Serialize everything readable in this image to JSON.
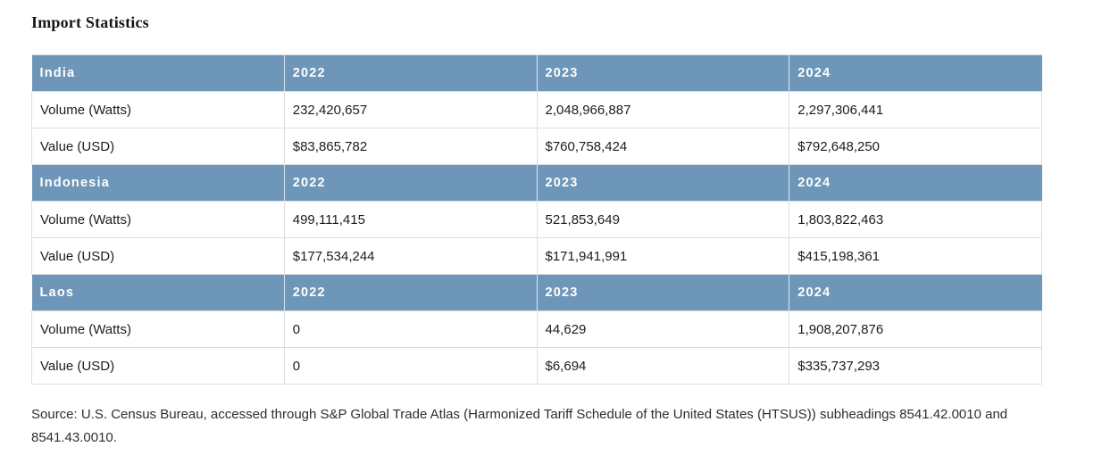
{
  "page": {
    "title": "Import Statistics"
  },
  "colors": {
    "header_bg": "#6e96b8",
    "header_text": "#ffffff",
    "row_border": "#d9dde2",
    "body_text": "#1c1c1c",
    "source_text": "#2e2e2e"
  },
  "table": {
    "row_labels": [
      "Volume (Watts)",
      "Value (USD)"
    ],
    "sections": [
      {
        "name": "India",
        "years": [
          "2022",
          "2023",
          "2024"
        ],
        "rows": [
          {
            "label": "Volume (Watts)",
            "values": [
              "232,420,657",
              "2,048,966,887",
              "2,297,306,441"
            ]
          },
          {
            "label": "Value (USD)",
            "values": [
              "$83,865,782",
              "$760,758,424",
              "$792,648,250"
            ]
          }
        ]
      },
      {
        "name": "Indonesia",
        "years": [
          "2022",
          "2023",
          "2024"
        ],
        "rows": [
          {
            "label": "Volume (Watts)",
            "values": [
              "499,111,415",
              "521,853,649",
              "1,803,822,463"
            ]
          },
          {
            "label": "Value (USD)",
            "values": [
              "$177,534,244",
              "$171,941,991",
              "$415,198,361"
            ]
          }
        ]
      },
      {
        "name": "Laos",
        "years": [
          "2022",
          "2023",
          "2024"
        ],
        "rows": [
          {
            "label": "Volume (Watts)",
            "values": [
              "0",
              "44,629",
              "1,908,207,876"
            ]
          },
          {
            "label": "Value (USD)",
            "values": [
              "0",
              "$6,694",
              "$335,737,293"
            ]
          }
        ]
      }
    ]
  },
  "source_note": "Source: U.S. Census Bureau, accessed through S&P Global Trade Atlas (Harmonized Tariff Schedule of the United States (HTSUS)) subheadings 8541.42.0010 and 8541.43.0010."
}
